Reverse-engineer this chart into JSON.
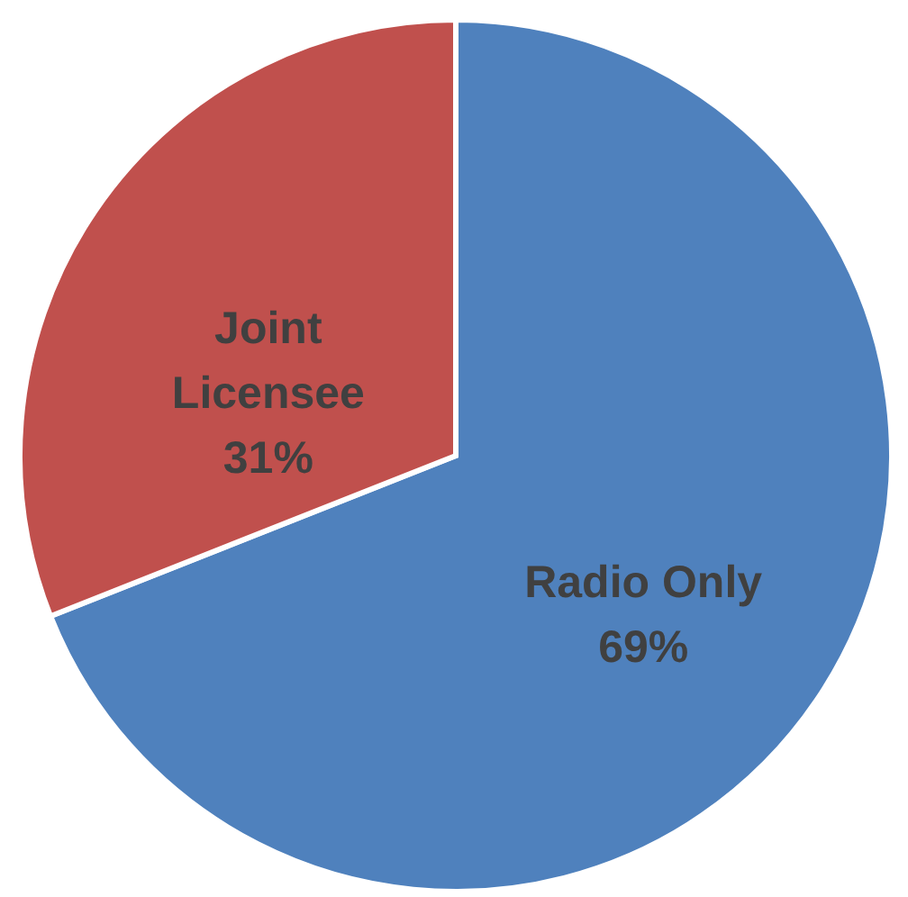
{
  "chart_data": {
    "type": "pie",
    "categories": [
      "Radio Only",
      "Joint Licensee"
    ],
    "values": [
      69,
      31
    ],
    "colors": [
      "#4f81bd",
      "#c0504d"
    ],
    "value_labels": [
      "69%",
      "31%"
    ]
  }
}
